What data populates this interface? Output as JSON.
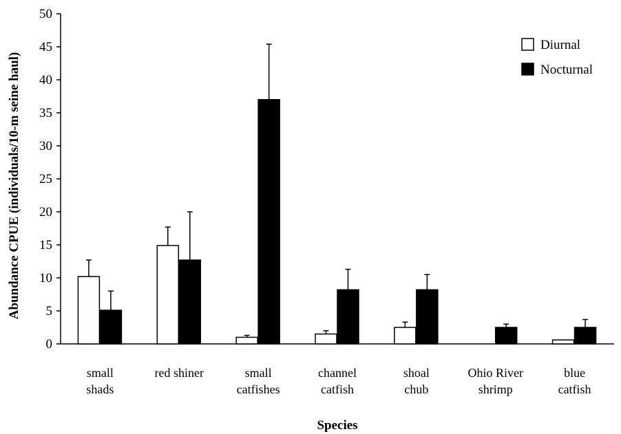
{
  "chart_data": {
    "type": "bar",
    "title": "",
    "xlabel": "Species",
    "ylabel": "Abundance CPUE (individuals/10-m seine haul)",
    "ylim": [
      0,
      50
    ],
    "yticks": [
      0,
      5,
      10,
      15,
      20,
      25,
      30,
      35,
      40,
      45,
      50
    ],
    "grid": false,
    "legend_position": "top-right",
    "categories": [
      [
        "small",
        "shads"
      ],
      [
        "red shiner"
      ],
      [
        "small",
        "catfishes"
      ],
      [
        "channel",
        "catfish"
      ],
      [
        "shoal",
        "chub"
      ],
      [
        "Ohio River",
        "shrimp"
      ],
      [
        "blue",
        "catfish"
      ]
    ],
    "series": [
      {
        "name": "Diurnal",
        "fill": "#ffffff",
        "values": [
          10.2,
          14.9,
          1.0,
          1.5,
          2.5,
          0,
          0.6
        ],
        "error_upper": [
          2.5,
          2.8,
          0.3,
          0.5,
          0.8,
          0,
          0
        ]
      },
      {
        "name": "Nocturnal",
        "fill": "#000000",
        "values": [
          5.1,
          12.7,
          37.0,
          8.2,
          8.2,
          2.5,
          2.5
        ],
        "error_upper": [
          2.9,
          7.3,
          8.4,
          3.1,
          2.3,
          0.5,
          1.2
        ]
      }
    ]
  }
}
